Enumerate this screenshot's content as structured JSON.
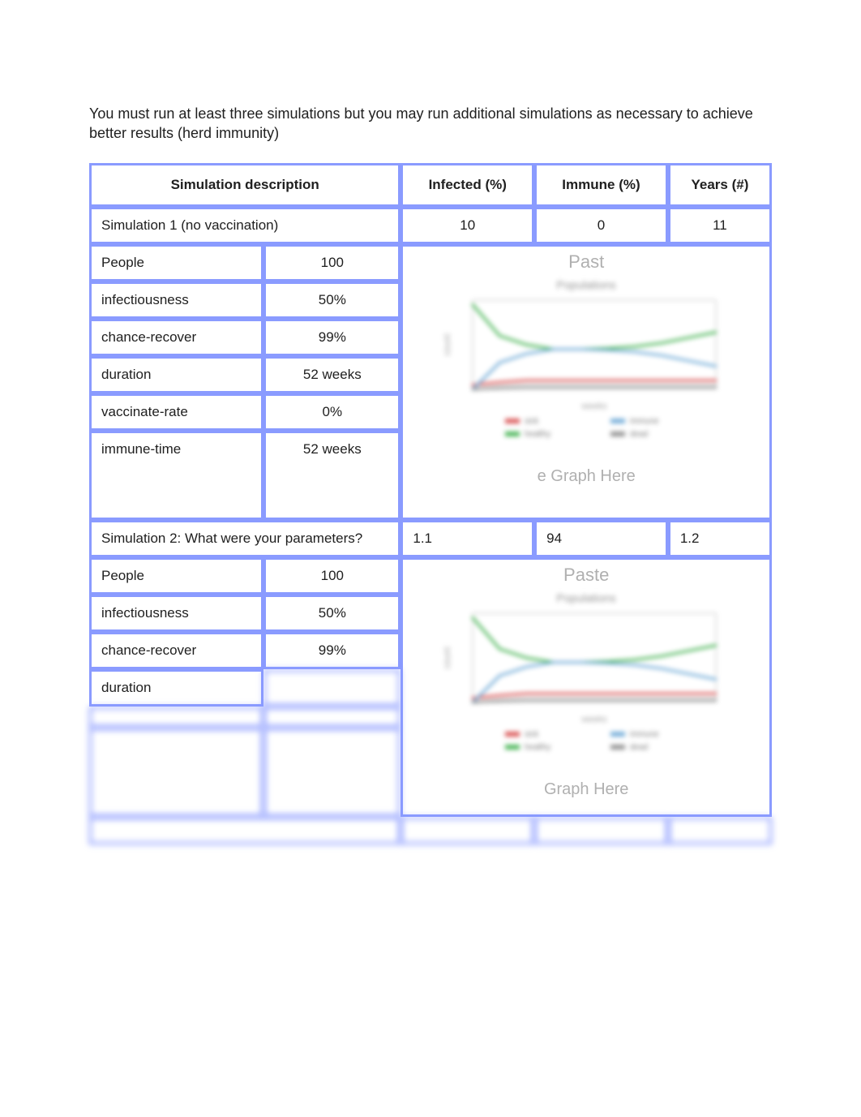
{
  "intro_text": "You must run at least three simulations but you may run additional simulations as necessary to achieve better results (herd immunity)",
  "headers": {
    "desc": "Simulation description",
    "infected": "Infected (%)",
    "immune": "Immune (%)",
    "years": "Years (#)"
  },
  "sim1": {
    "title": "Simulation 1 (no vaccination)",
    "infected": "10",
    "immune": "0",
    "years": "11",
    "graph_top_caption": "Past",
    "graph_bottom_caption": "e Graph Here",
    "params": {
      "people_label": "People",
      "people_value": "100",
      "infectiousness_label": "infectiousness",
      "infectiousness_value": "50%",
      "recover_label": "chance-recover",
      "recover_value": "99%",
      "duration_label": "duration",
      "duration_value": "52 weeks",
      "vaccrate_label": "vaccinate-rate",
      "vaccrate_value": "0%",
      "immunetime_label": "immune-time",
      "immunetime_value": "52 weeks"
    }
  },
  "sim2": {
    "title": "Simulation 2: What were your parameters?",
    "infected": "1.1",
    "immune": "94",
    "years": "1.2",
    "graph_top_caption": "Paste",
    "graph_bottom_caption": "Graph Here",
    "params": {
      "people_label": "People",
      "people_value": "100",
      "infectiousness_label": "infectiousness",
      "infectiousness_value": "50%",
      "recover_label": "chance-recover",
      "recover_value": "99%",
      "duration_label": "duration",
      "duration_value": "",
      "vaccrate_label": "",
      "vaccrate_value": "",
      "immunetime_label": "",
      "immunetime_value": ""
    }
  },
  "sim3_peek": {
    "title": "",
    "infected": "",
    "immune": "",
    "years": ""
  },
  "chart_style": {
    "type": "line",
    "title": "Populations",
    "title_fontsize": 14,
    "title_color": "#8a8a8a",
    "background_color": "#ffffff",
    "xlim": [
      0,
      52
    ],
    "ylim": [
      0,
      100
    ],
    "xlabel": "weeks",
    "label_fontsize": 11,
    "label_color": "#9a9a9a",
    "line_width": 3,
    "series": [
      {
        "name": "sick",
        "color": "#d84a4a",
        "values": [
          5,
          8,
          10,
          10,
          10,
          10,
          10,
          10,
          10,
          10
        ]
      },
      {
        "name": "healthy",
        "color": "#3cb04a",
        "values": [
          95,
          60,
          50,
          45,
          45,
          46,
          48,
          52,
          58,
          64
        ]
      },
      {
        "name": "immune",
        "color": "#6aa7d6",
        "values": [
          0,
          30,
          40,
          45,
          45,
          44,
          42,
          38,
          32,
          26
        ]
      },
      {
        "name": "dead",
        "color": "#888888",
        "values": [
          0,
          2,
          3,
          3,
          3,
          3,
          3,
          3,
          3,
          3
        ]
      }
    ],
    "legend": {
      "position": "bottom",
      "fontsize": 10,
      "swatch_width": 18,
      "swatch_height": 6
    }
  }
}
